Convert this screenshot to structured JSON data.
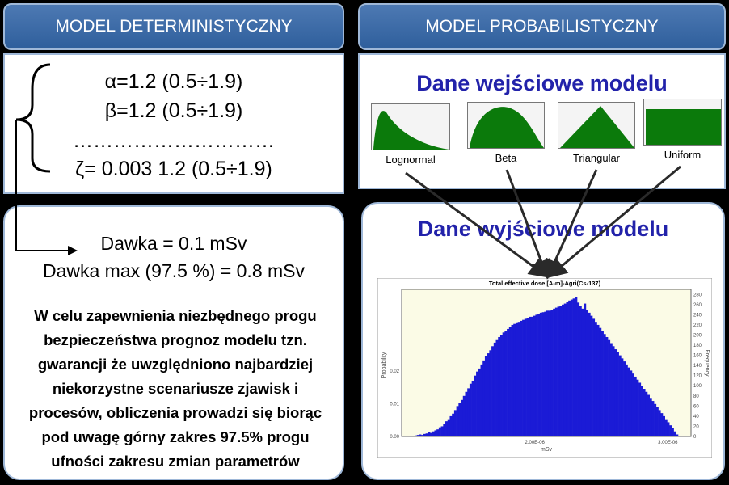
{
  "headers": {
    "left": "MODEL DETERMINISTYCZNY",
    "right": "MODEL PROBABILISTYCZNY"
  },
  "deterministic": {
    "params": [
      "α=1.2 (0.5÷1.9)",
      "β=1.2 (0.5÷1.9)",
      "…………………………",
      "ζ= 0.003 1.2 (0.5÷1.9)"
    ],
    "dose": "Dawka = 0.1 mSv",
    "dose_max": "Dawka max (97.5 %) = 0.8 mSv",
    "paragraph_lines": [
      "W celu zapewnienia niezbędnego progu",
      "bezpieczeństwa prognoz modelu tzn.",
      "gwarancji że uwzględniono najbardziej",
      "niekorzystne scenariusze zjawisk i",
      "procesów, obliczenia prowadzi się biorąc",
      "pod uwagę górny zakres 97.5% progu",
      "ufności zakresu zmian parametrów"
    ]
  },
  "probabilistic": {
    "inputs_title": "Dane wejściowe modelu",
    "outputs_title": "Dane wyjściowe modelu",
    "distributions": [
      "Lognormal",
      "Beta",
      "Triangular",
      "Uniform"
    ]
  },
  "colors": {
    "header": "#2f5f9c",
    "dist_fill": "#0b7a0b",
    "bars": "#1b1bd6",
    "title": "#2222aa"
  },
  "chart_data": {
    "type": "bar",
    "title": "Total effective dose [A-m]-Agri(Cs-137)",
    "xlabel": "mSv",
    "ylabel": "Probability",
    "y2label": "Frequency",
    "x_ticks": [
      "2.00E-06",
      "3.00E-06"
    ],
    "y_ticks": [
      "0.00",
      "0.01",
      "0.02"
    ],
    "y2_ticks": [
      "0",
      "20",
      "40",
      "60",
      "80",
      "100",
      "120",
      "140",
      "160",
      "180",
      "200",
      "220",
      "240",
      "260",
      "280"
    ],
    "y2lim": [
      0,
      290
    ],
    "values": [
      2,
      3,
      4,
      3,
      5,
      6,
      8,
      7,
      10,
      12,
      14,
      18,
      20,
      25,
      30,
      34,
      40,
      45,
      52,
      60,
      66,
      72,
      80,
      88,
      95,
      104,
      110,
      120,
      128,
      134,
      142,
      150,
      158,
      164,
      170,
      178,
      185,
      190,
      196,
      200,
      205,
      208,
      212,
      216,
      220,
      222,
      225,
      226,
      228,
      230,
      232,
      234,
      236,
      236,
      238,
      240,
      242,
      244,
      245,
      246,
      248,
      248,
      250,
      252,
      254,
      256,
      258,
      260,
      262,
      266,
      268,
      270,
      272,
      275,
      264,
      258,
      252,
      262,
      250,
      244,
      238,
      232,
      226,
      220,
      214,
      208,
      202,
      196,
      190,
      184,
      178,
      172,
      166,
      160,
      154,
      148,
      142,
      136,
      130,
      124,
      118,
      112,
      106,
      100,
      94,
      88,
      82,
      76,
      70,
      64,
      58,
      52,
      46,
      40,
      34,
      28,
      22,
      16,
      10,
      4
    ]
  }
}
